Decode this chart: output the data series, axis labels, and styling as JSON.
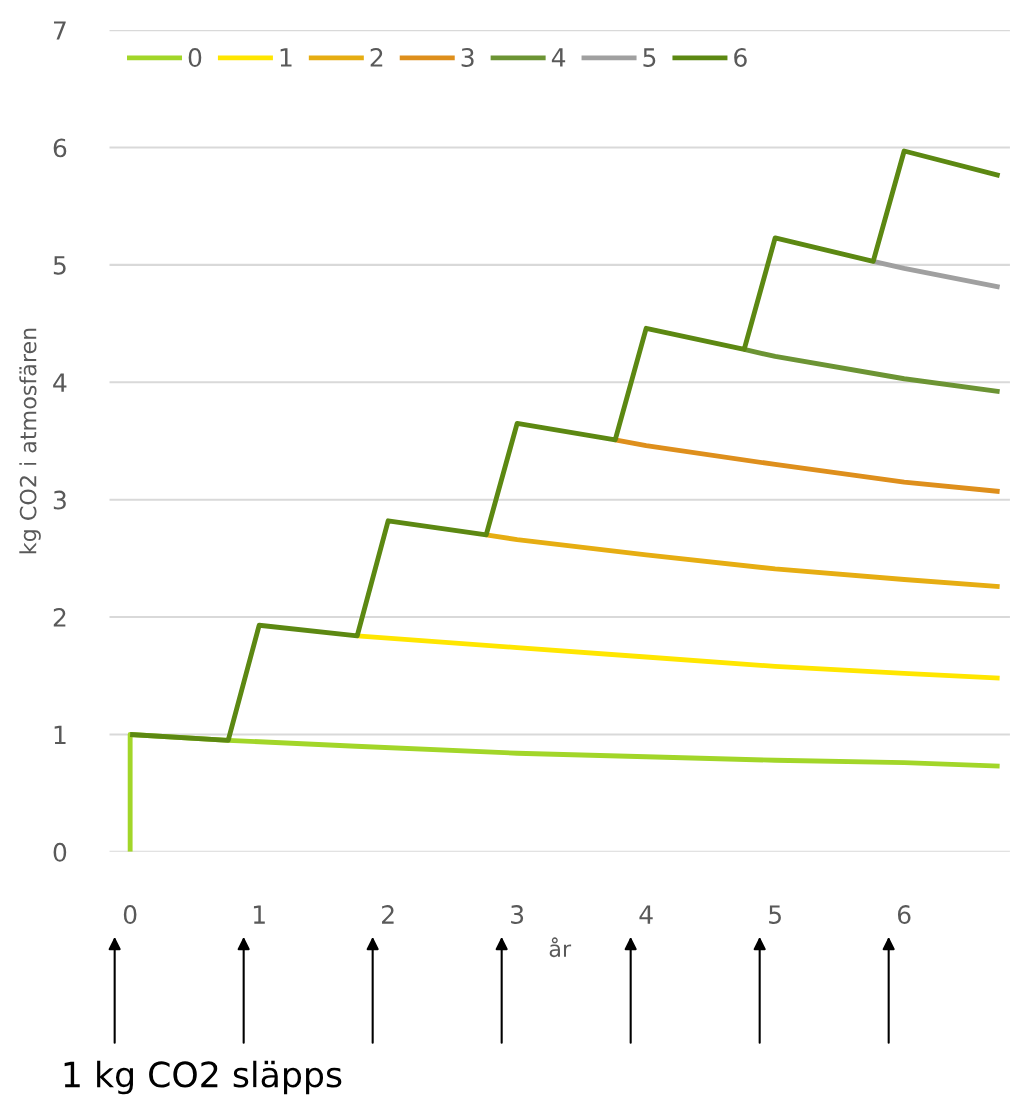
{
  "chart_data": {
    "type": "line",
    "ylabel": "kg CO2 i atmosfären",
    "xlabel": "år",
    "xlim": [
      -0.16,
      6.82
    ],
    "xticks": [
      0,
      1,
      2,
      3,
      4,
      5,
      6
    ],
    "ylim": [
      0,
      7
    ],
    "yticks": [
      0,
      1,
      2,
      3,
      4,
      5,
      6,
      7
    ],
    "grid": "y",
    "legend": "top left",
    "marker": "none",
    "line_style": "solid",
    "series": [
      {
        "name": "0",
        "color": "#a2d629",
        "x": [
          0,
          0,
          0.76,
          1.75,
          3,
          4,
          5,
          6,
          6.74
        ],
        "values": [
          0,
          1,
          0.95,
          0.9,
          0.84,
          0.81,
          0.78,
          0.76,
          0.73
        ]
      },
      {
        "name": "1",
        "color": "#ffe600",
        "x": [
          1.76,
          3,
          4,
          5,
          6,
          6.74
        ],
        "values": [
          1.84,
          1.74,
          1.66,
          1.58,
          1.52,
          1.48
        ]
      },
      {
        "name": "2",
        "color": "#e6ad12",
        "x": [
          2.76,
          3,
          4,
          5,
          6,
          6.74
        ],
        "values": [
          2.7,
          2.66,
          2.53,
          2.41,
          2.32,
          2.26
        ]
      },
      {
        "name": "3",
        "color": "#de8f1c",
        "x": [
          3.76,
          4,
          5,
          6,
          6.74
        ],
        "values": [
          3.51,
          3.46,
          3.3,
          3.15,
          3.07
        ]
      },
      {
        "name": "4",
        "color": "#6c9434",
        "x": [
          4.76,
          5,
          6,
          6.74
        ],
        "values": [
          4.28,
          4.22,
          4.03,
          3.92
        ]
      },
      {
        "name": "5",
        "color": "#a0a0a0",
        "x": [
          5.76,
          6,
          6.74
        ],
        "values": [
          5.03,
          4.97,
          4.81
        ]
      },
      {
        "name": "6",
        "color": "#5c8812",
        "x": [
          0,
          0.76,
          1,
          1.76,
          2,
          2.76,
          3,
          3.76,
          4,
          4.76,
          5,
          5.76,
          6,
          6.74
        ],
        "values": [
          1,
          0.95,
          1.93,
          1.84,
          2.82,
          2.7,
          3.65,
          3.51,
          4.46,
          4.28,
          5.23,
          5.03,
          5.97,
          5.76
        ]
      }
    ],
    "annotations": [
      "1 kg CO2 släpps"
    ]
  }
}
